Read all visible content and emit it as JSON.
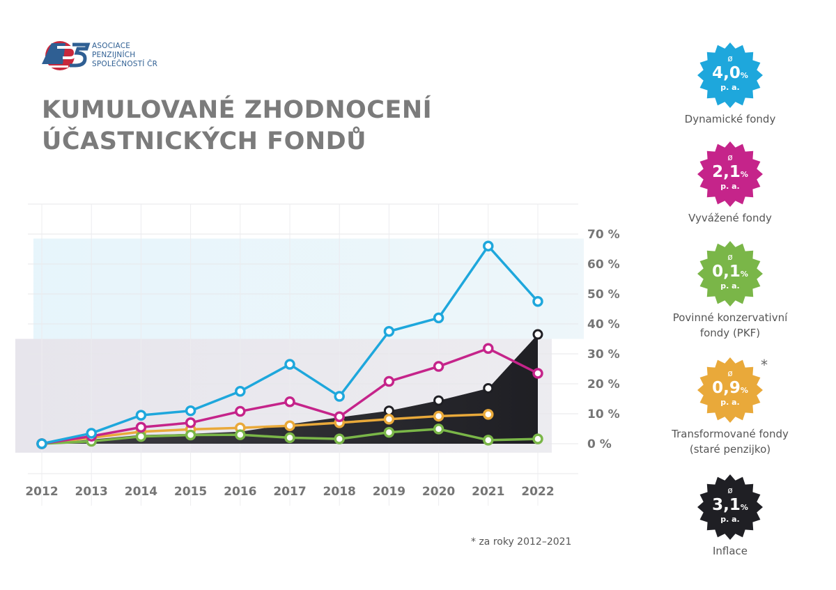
{
  "logo": {
    "lines": [
      "ASOCIACE",
      "PENZIJNÍCH",
      "SPOLEČNOSTÍ ČR"
    ],
    "colors": {
      "blue": "#2f5f93",
      "red": "#c8283c"
    }
  },
  "title": {
    "line1": "KUMULOVANÉ ZHODNOCENÍ",
    "line2": "ÚČASTNICKÝCH FONDŮ"
  },
  "footnote": "* za roky 2012–2021",
  "chart_data": {
    "type": "line",
    "x": [
      "2012",
      "2013",
      "2014",
      "2015",
      "2016",
      "2017",
      "2018",
      "2019",
      "2020",
      "2021",
      "2022"
    ],
    "y_ticks": [
      "0 %",
      "10 %",
      "20 %",
      "30 %",
      "40 %",
      "50 %",
      "60 %",
      "70 %"
    ],
    "ylim": [
      -13,
      80
    ],
    "series": [
      {
        "key": "inflation",
        "color": "#1f1f24",
        "style": "area",
        "values": [
          0,
          1.4,
          2.9,
          3.3,
          4.0,
          6.5,
          8.8,
          11.0,
          14.4,
          18.5,
          36.5
        ]
      },
      {
        "key": "dynamic",
        "color": "#1ea7dc",
        "values": [
          0,
          3.5,
          9.5,
          11.0,
          17.5,
          26.5,
          15.8,
          37.5,
          42.0,
          66.0,
          47.5
        ]
      },
      {
        "key": "balanced",
        "color": "#c5248a",
        "values": [
          0,
          2.5,
          5.5,
          7.0,
          10.8,
          14.0,
          9.0,
          20.8,
          25.8,
          31.8,
          23.5
        ]
      },
      {
        "key": "transformed",
        "color": "#e9a93a",
        "values": [
          0,
          2.0,
          4.0,
          4.8,
          5.3,
          6.0,
          7.0,
          8.2,
          9.2,
          9.8,
          null
        ]
      },
      {
        "key": "pkf",
        "color": "#7ab648",
        "values": [
          0,
          0.8,
          2.4,
          2.9,
          3.0,
          2.0,
          1.6,
          3.8,
          4.9,
          1.2,
          1.6
        ]
      }
    ],
    "grid": true,
    "legend_position": "right"
  },
  "legend": [
    {
      "key": "dynamic",
      "symbol": "ø",
      "value": "4,0",
      "unit": "%",
      "pa": "p. a.",
      "label": [
        "Dynamické fondy"
      ],
      "color": "#1ea7dc"
    },
    {
      "key": "balanced",
      "symbol": "ø",
      "value": "2,1",
      "unit": "%",
      "pa": "p. a.",
      "label": [
        "Vyvážené fondy"
      ],
      "color": "#c5248a"
    },
    {
      "key": "pkf",
      "symbol": "ø",
      "value": "0,1",
      "unit": "%",
      "pa": "p. a.",
      "label": [
        "Povinné konzervativní",
        "fondy (PKF)"
      ],
      "color": "#7ab648"
    },
    {
      "key": "transformed",
      "symbol": "ø",
      "value": "0,9",
      "unit": "%",
      "pa": "p. a.",
      "label": [
        "Transformované fondy",
        "(staré penzijko)"
      ],
      "color": "#e9a93a",
      "asterisk": "*"
    },
    {
      "key": "inflation",
      "symbol": "ø",
      "value": "3,1",
      "unit": "%",
      "pa": "p. a.",
      "label": [
        "Inflace"
      ],
      "color": "#1f1f24"
    }
  ]
}
